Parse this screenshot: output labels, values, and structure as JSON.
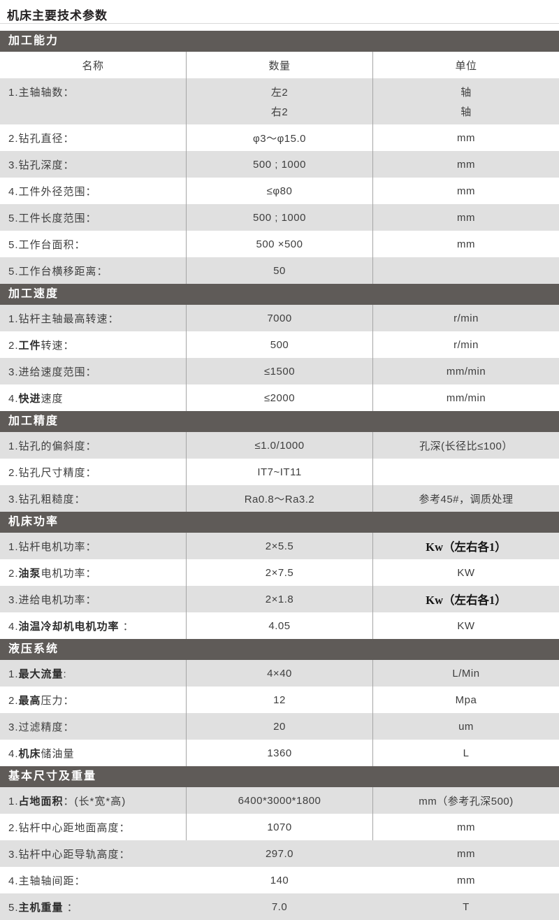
{
  "page": {
    "title": "机床主要技术参数"
  },
  "table": {
    "columns": [
      "名称",
      "数量",
      "单位"
    ],
    "colors": {
      "band_bg": "#5f5b58",
      "band_text": "#ffffff",
      "row_gray": "#e0e0e0",
      "row_white": "#ffffff",
      "divider": "#a6a6a6",
      "text": "#3e3e3e"
    },
    "sections": [
      {
        "title": "加工能力",
        "show_column_header": true,
        "rows": [
          {
            "label_pre": "1.主轴轴数：",
            "label_bold": "",
            "label_post": "",
            "qty": [
              "左2",
              "右2"
            ],
            "unit": [
              "轴",
              "轴"
            ],
            "tall": true
          },
          {
            "label_pre": "2.钻孔直径：",
            "label_bold": "",
            "label_post": "",
            "qty": "φ3～φ15.0",
            "unit": "mm"
          },
          {
            "label_pre": "3.钻孔深度：",
            "label_bold": "",
            "label_post": "",
            "qty": "500 ; 1000",
            "unit": "mm"
          },
          {
            "label_pre": "4.工件外径范围：",
            "label_bold": "",
            "label_post": "",
            "qty": "≤φ80",
            "unit": "mm"
          },
          {
            "label_pre": "5.工件长度范围：",
            "label_bold": "",
            "label_post": "",
            "qty": "500 ; 1000",
            "unit": "mm"
          },
          {
            "label_pre": "5.工作台面积：",
            "label_bold": "",
            "label_post": "",
            "qty": "500 ×500",
            "unit": "mm"
          },
          {
            "label_pre": "5.工作台横移距离：",
            "label_bold": "",
            "label_post": "",
            "qty": "50",
            "unit": ""
          }
        ]
      },
      {
        "title": "加工速度",
        "show_column_header": false,
        "rows": [
          {
            "label_pre": "1.钻杆主轴最高转速：",
            "label_bold": "",
            "label_post": "",
            "qty": "7000",
            "unit": "r/min"
          },
          {
            "label_pre": "2.",
            "label_bold": "工件",
            "label_post": "转速：",
            "qty": "500",
            "unit": "r/min"
          },
          {
            "label_pre": "3.进给速度范围：",
            "label_bold": "",
            "label_post": "",
            "qty": "≤1500",
            "unit": "mm/min"
          },
          {
            "label_pre": "4.",
            "label_bold": "快进",
            "label_post": "速度",
            "qty": "≤2000",
            "unit": "mm/min"
          }
        ]
      },
      {
        "title": "加工精度",
        "show_column_header": false,
        "rows": [
          {
            "label_pre": "1.钻孔的偏斜度：",
            "label_bold": "",
            "label_post": "",
            "qty": "≤1.0/1000",
            "unit": "孔深(长径比≤100）"
          },
          {
            "label_pre": "2.钻孔尺寸精度：",
            "label_bold": "",
            "label_post": "",
            "qty": "IT7~IT11",
            "unit": ""
          },
          {
            "label_pre": "3.钻孔粗糙度：",
            "label_bold": "",
            "label_post": "",
            "qty": "Ra0.8～Ra3.2",
            "unit": "参考45#，调质处理"
          }
        ]
      },
      {
        "title": "机床功率",
        "show_column_header": false,
        "rows": [
          {
            "label_pre": "1.钻杆电机功率：",
            "label_bold": "",
            "label_post": "",
            "qty": "2×5.5",
            "unit": "Kw（左右各1）",
            "unit_bold": true
          },
          {
            "label_pre": "2.",
            "label_bold": "油泵",
            "label_post": "电机功率：",
            "qty": "2×7.5",
            "unit": "KW"
          },
          {
            "label_pre": "3.进给电机功率：",
            "label_bold": "",
            "label_post": "",
            "qty": "2×1.8",
            "unit": "Kw（左右各1）",
            "unit_bold": true
          },
          {
            "label_pre": "4.",
            "label_bold": "油温冷却机电机功率",
            "label_post": " ：",
            "qty": "4.05",
            "unit": "KW"
          }
        ]
      },
      {
        "title": "液压系统",
        "show_column_header": false,
        "rows": [
          {
            "label_pre": "1.",
            "label_bold": "最大流量",
            "label_post": ":",
            "qty": "4×40",
            "unit": "L/Min"
          },
          {
            "label_pre": "2.",
            "label_bold": "最高",
            "label_post": "压力：",
            "qty": "12",
            "unit": "Mpa"
          },
          {
            "label_pre": "3.过滤精度：",
            "label_bold": "",
            "label_post": "",
            "qty": "20",
            "unit": "um"
          },
          {
            "label_pre": "4.",
            "label_bold": "机床",
            "label_post": "储油量",
            "qty": "1360",
            "unit": "L"
          }
        ]
      },
      {
        "title": "基本尺寸及重量",
        "show_column_header": false,
        "rows": [
          {
            "label_pre": "1.",
            "label_bold": "占地面积",
            "label_post": "：(长*宽*高)",
            "qty": "6400*3000*1800",
            "unit": "mm（参考孔深500)"
          },
          {
            "label_pre": "2.钻杆中心距地面高度：",
            "label_bold": "",
            "label_post": "",
            "qty": "1070",
            "unit": "mm"
          },
          {
            "label_pre": "3.钻杆中心距导轨高度：",
            "label_bold": "",
            "label_post": "",
            "qty": "297.0",
            "unit": "mm",
            "no_divider": true
          },
          {
            "label_pre": "4.主轴轴间距：",
            "label_bold": "",
            "label_post": "",
            "qty": "140",
            "unit": "mm",
            "no_divider": true
          },
          {
            "label_pre": "5.",
            "label_bold": "主机重量",
            "label_post": " ：",
            "qty": "7.0",
            "unit": "T",
            "no_divider": true
          }
        ]
      }
    ]
  }
}
